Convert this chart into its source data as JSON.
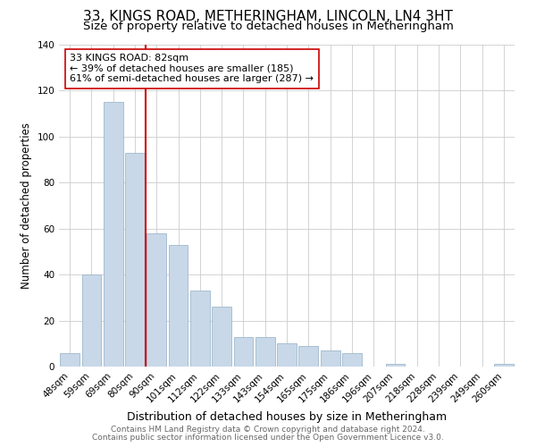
{
  "title": "33, KINGS ROAD, METHERINGHAM, LINCOLN, LN4 3HT",
  "subtitle": "Size of property relative to detached houses in Metheringham",
  "xlabel": "Distribution of detached houses by size in Metheringham",
  "ylabel": "Number of detached properties",
  "bar_labels": [
    "48sqm",
    "59sqm",
    "69sqm",
    "80sqm",
    "90sqm",
    "101sqm",
    "112sqm",
    "122sqm",
    "133sqm",
    "143sqm",
    "154sqm",
    "165sqm",
    "175sqm",
    "186sqm",
    "196sqm",
    "207sqm",
    "218sqm",
    "228sqm",
    "239sqm",
    "249sqm",
    "260sqm"
  ],
  "bar_values": [
    6,
    40,
    115,
    93,
    58,
    53,
    33,
    26,
    13,
    13,
    10,
    9,
    7,
    6,
    0,
    1,
    0,
    0,
    0,
    0,
    1
  ],
  "bar_color": "#c8d8e8",
  "bar_edge_color": "#a0b8cc",
  "vline_color": "#cc0000",
  "annotation_text": "33 KINGS ROAD: 82sqm\n← 39% of detached houses are smaller (185)\n61% of semi-detached houses are larger (287) →",
  "annotation_box_color": "#ffffff",
  "annotation_box_edge_color": "#cc0000",
  "ylim": [
    0,
    140
  ],
  "yticks": [
    0,
    20,
    40,
    60,
    80,
    100,
    120,
    140
  ],
  "footer1": "Contains HM Land Registry data © Crown copyright and database right 2024.",
  "footer2": "Contains public sector information licensed under the Open Government Licence v3.0.",
  "title_fontsize": 11,
  "subtitle_fontsize": 9.5,
  "xlabel_fontsize": 9,
  "ylabel_fontsize": 8.5,
  "tick_fontsize": 7.5,
  "annotation_fontsize": 8,
  "footer_fontsize": 6.5
}
